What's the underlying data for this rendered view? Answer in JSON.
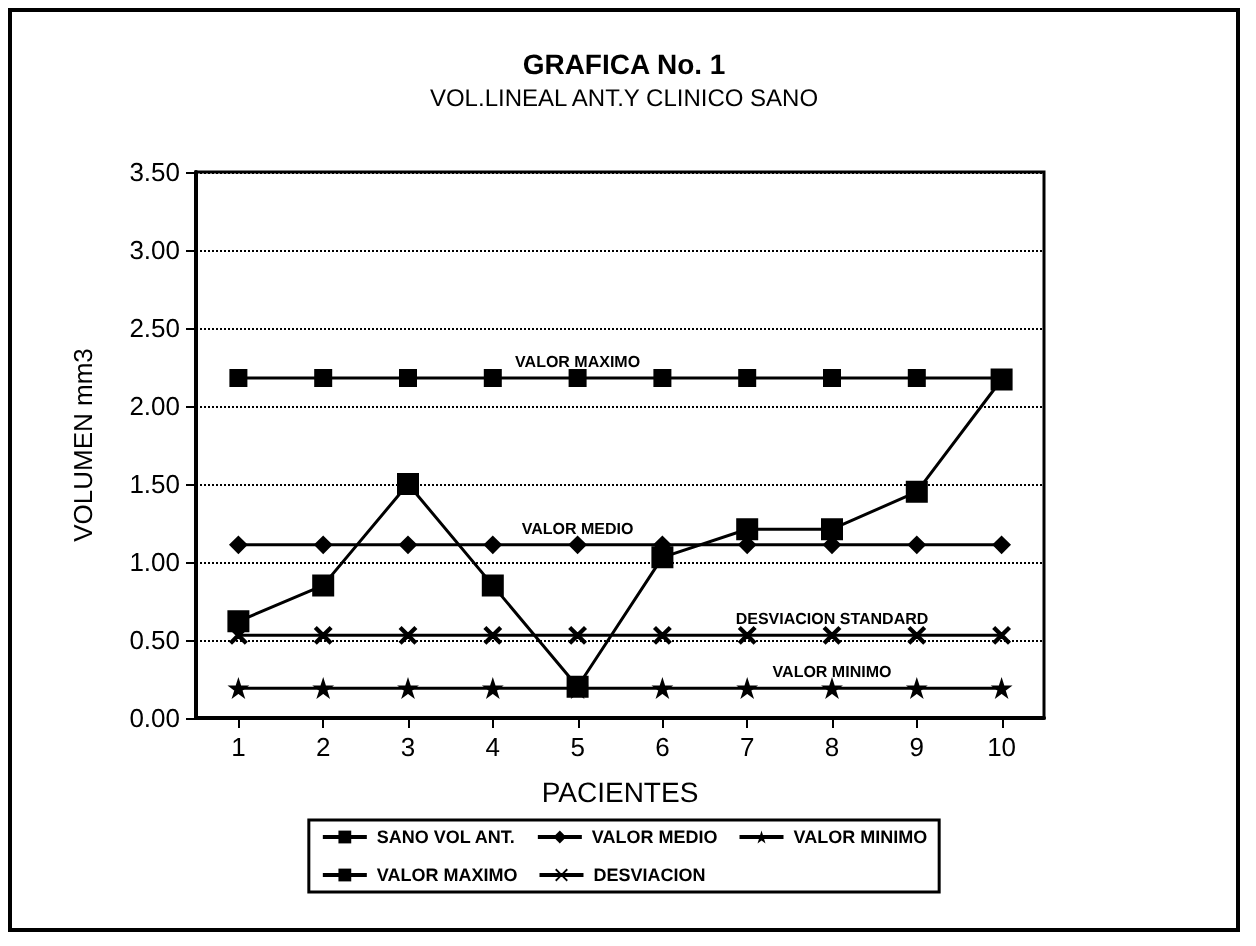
{
  "chart_data": {
    "type": "line",
    "title": "GRAFICA No. 1",
    "subtitle": "VOL.LINEAL ANT.Y CLINICO SANO",
    "xlabel": "PACIENTES",
    "ylabel": "VOLUMEN mm3",
    "categories": [
      "1",
      "2",
      "3",
      "4",
      "5",
      "6",
      "7",
      "8",
      "9",
      "10"
    ],
    "series": [
      {
        "name": "SANO VOL ANT.",
        "color": "#000000",
        "marker": "square",
        "values": [
          0.62,
          0.85,
          1.5,
          0.85,
          0.2,
          1.03,
          1.21,
          1.21,
          1.45,
          2.17
        ]
      },
      {
        "name": "VALOR MEDIO",
        "color": "#000000",
        "marker": "diamond",
        "values": [
          1.11,
          1.11,
          1.11,
          1.11,
          1.11,
          1.11,
          1.11,
          1.11,
          1.11,
          1.11
        ]
      },
      {
        "name": "VALOR MINIMO",
        "color": "#000000",
        "marker": "star",
        "values": [
          0.19,
          0.19,
          0.19,
          0.19,
          0.19,
          0.19,
          0.19,
          0.19,
          0.19,
          0.19
        ]
      },
      {
        "name": "VALOR MAXIMO",
        "color": "#000000",
        "marker": "square",
        "values": [
          2.18,
          2.18,
          2.18,
          2.18,
          2.18,
          2.18,
          2.18,
          2.18,
          2.18,
          2.18
        ]
      },
      {
        "name": "DESVIACION",
        "color": "#000000",
        "marker": "cross",
        "values": [
          0.53,
          0.53,
          0.53,
          0.53,
          0.53,
          0.53,
          0.53,
          0.53,
          0.53,
          0.53
        ]
      }
    ],
    "annotations": [
      {
        "text": "VALOR MAXIMO",
        "x": "5",
        "y": 2.18
      },
      {
        "text": "VALOR MEDIO",
        "x": "5",
        "y": 1.11
      },
      {
        "text": "DESVIACION STANDARD",
        "x": "8",
        "y": 0.53
      },
      {
        "text": "VALOR MINIMO",
        "x": "8",
        "y": 0.19
      }
    ],
    "ylim": [
      0,
      3.5
    ],
    "yticks": [
      {
        "value": 0,
        "label": "0.00"
      },
      {
        "value": 0.5,
        "label": "0.50"
      },
      {
        "value": 1,
        "label": "1.00"
      },
      {
        "value": 1.5,
        "label": "1.50"
      },
      {
        "value": 2,
        "label": "2.00"
      },
      {
        "value": 2.5,
        "label": "2.50"
      },
      {
        "value": 3,
        "label": "3.00"
      },
      {
        "value": 3.5,
        "label": "3.50"
      }
    ],
    "grid": "y",
    "legend": "bottom",
    "line_style": "solid"
  }
}
